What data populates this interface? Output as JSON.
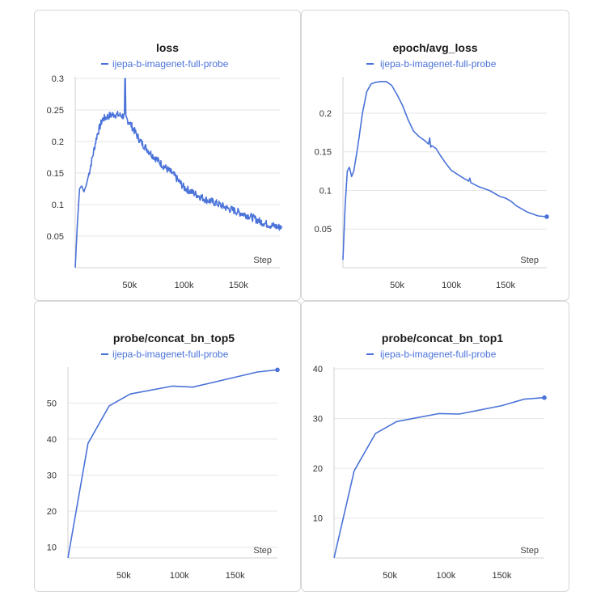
{
  "colors": {
    "series": "#4a72d9",
    "grid": "#e6e6e6"
  },
  "chart_data": [
    {
      "type": "line",
      "title": "loss",
      "legend": "ijepa-b-imagenet-full-probe",
      "xlabel": "Step",
      "xticks": [
        "50k",
        "100k",
        "150k"
      ],
      "xtick_values": [
        50000,
        100000,
        150000
      ],
      "yticks": [
        "0.3",
        "0.25",
        "0.2",
        "0.15",
        "0.1",
        "0.05"
      ],
      "ytick_values": [
        0.3,
        0.25,
        0.2,
        0.15,
        0.1,
        0.05
      ],
      "xlim": [
        0,
        188000
      ],
      "ylim": [
        0.0,
        0.3
      ],
      "noisy": true,
      "spike": {
        "x": 46000,
        "y": 0.3
      },
      "end_marker": true,
      "x": [
        0,
        2000,
        4000,
        6000,
        8000,
        10000,
        14000,
        20000,
        25000,
        30000,
        35000,
        40000,
        45000,
        50000,
        55000,
        60000,
        70000,
        80000,
        90000,
        100000,
        110000,
        120000,
        130000,
        140000,
        150000,
        160000,
        170000,
        180000,
        188000
      ],
      "y": [
        0.0,
        0.07,
        0.125,
        0.13,
        0.12,
        0.13,
        0.16,
        0.21,
        0.235,
        0.24,
        0.243,
        0.242,
        0.24,
        0.23,
        0.215,
        0.2,
        0.18,
        0.163,
        0.148,
        0.127,
        0.117,
        0.108,
        0.102,
        0.094,
        0.088,
        0.082,
        0.073,
        0.067,
        0.064
      ]
    },
    {
      "type": "line",
      "title": "epoch/avg_loss",
      "legend": "ijepa-b-imagenet-full-probe",
      "xlabel": "Step",
      "xticks": [
        "50k",
        "100k",
        "150k"
      ],
      "xtick_values": [
        50000,
        100000,
        150000
      ],
      "yticks": [
        "0.2",
        "0.15",
        "0.1",
        "0.05"
      ],
      "ytick_values": [
        0.2,
        0.15,
        0.1,
        0.05
      ],
      "xlim": [
        0,
        188000
      ],
      "ylim": [
        0.0,
        0.245
      ],
      "noisy": false,
      "end_marker": true,
      "x": [
        0,
        2000,
        4000,
        6000,
        8000,
        10000,
        14000,
        18000,
        22000,
        26000,
        30000,
        35000,
        40000,
        45000,
        50000,
        55000,
        60000,
        65000,
        70000,
        75000,
        79000,
        80000,
        81000,
        82000,
        86000,
        90000,
        95000,
        100000,
        110000,
        116000,
        117000,
        118000,
        125000,
        135000,
        145000,
        150000,
        155000,
        160000,
        170000,
        180000,
        188000
      ],
      "y": [
        0.01,
        0.08,
        0.125,
        0.13,
        0.118,
        0.125,
        0.16,
        0.2,
        0.228,
        0.238,
        0.24,
        0.241,
        0.241,
        0.236,
        0.224,
        0.21,
        0.192,
        0.177,
        0.17,
        0.165,
        0.16,
        0.168,
        0.156,
        0.158,
        0.154,
        0.145,
        0.135,
        0.126,
        0.117,
        0.112,
        0.116,
        0.11,
        0.105,
        0.1,
        0.092,
        0.09,
        0.086,
        0.08,
        0.072,
        0.067,
        0.066
      ]
    },
    {
      "type": "line",
      "title": "probe/concat_bn_top5",
      "legend": "ijepa-b-imagenet-full-probe",
      "xlabel": "Step",
      "xticks": [
        "50k",
        "100k",
        "150k"
      ],
      "xtick_values": [
        50000,
        100000,
        150000
      ],
      "yticks": [
        "50",
        "40",
        "30",
        "20",
        "10"
      ],
      "ytick_values": [
        50,
        40,
        30,
        20,
        10
      ],
      "xlim": [
        0,
        188000
      ],
      "ylim": [
        7,
        59.5
      ],
      "noisy": false,
      "end_marker": true,
      "x": [
        0,
        18000,
        37000,
        56000,
        94000,
        112000,
        170000,
        188000
      ],
      "y": [
        7,
        38.8,
        49.2,
        52.5,
        54.7,
        54.4,
        58.6,
        59.2
      ]
    },
    {
      "type": "line",
      "title": "probe/concat_bn_top1",
      "legend": "ijepa-b-imagenet-full-probe",
      "xlabel": "Step",
      "xticks": [
        "50k",
        "100k",
        "150k"
      ],
      "xtick_values": [
        50000,
        100000,
        150000
      ],
      "yticks": [
        "40",
        "30",
        "20",
        "10"
      ],
      "ytick_values": [
        40,
        30,
        20,
        10
      ],
      "xlim": [
        0,
        188000
      ],
      "ylim": [
        2,
        40
      ],
      "noisy": false,
      "end_marker": true,
      "x": [
        0,
        18000,
        37000,
        56000,
        94000,
        112000,
        150000,
        170000,
        188000
      ],
      "y": [
        2,
        19.5,
        27,
        29.4,
        31,
        30.9,
        32.6,
        33.9,
        34.2
      ]
    }
  ]
}
